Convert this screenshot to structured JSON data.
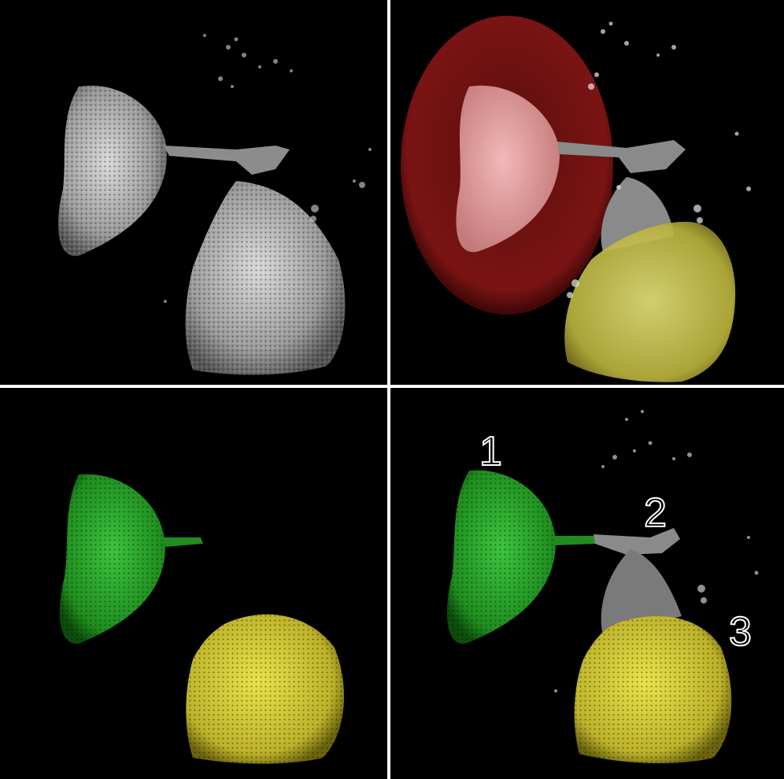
{
  "panels": [
    {
      "id": "top-left",
      "content": "grayscale-render"
    },
    {
      "id": "top-right",
      "content": "overlay-red-yellow"
    },
    {
      "id": "bottom-left",
      "content": "green-yellow-segmentation"
    },
    {
      "id": "bottom-right",
      "content": "labeled-segmentation"
    }
  ],
  "labels": {
    "one": "1",
    "two": "2",
    "three": "3"
  },
  "colors": {
    "background": "#000000",
    "divider": "#ffffff",
    "tissue_gray": "#c9c9c9",
    "red_region": "#8a1a1a",
    "yellow_region": "#e6e04a",
    "green_region": "#2fa52f"
  }
}
